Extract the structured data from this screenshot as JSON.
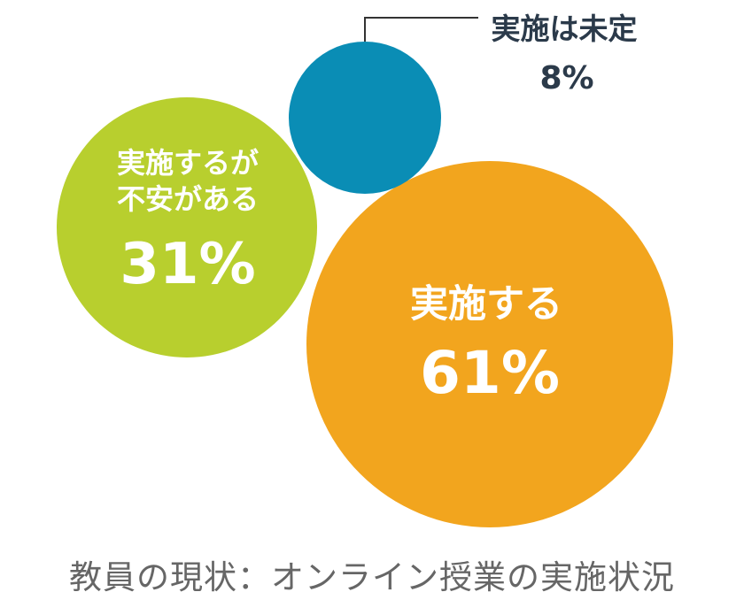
{
  "chart_data": {
    "type": "bubble",
    "title": "教員の現状：オンライン授業の実施状況",
    "series": [
      {
        "label_lines": [
          "実施する"
        ],
        "value_label": "61%",
        "value": 61,
        "color": "#f2a51e"
      },
      {
        "label_lines": [
          "実施するが",
          "不安がある"
        ],
        "value_label": "31%",
        "value": 31,
        "color": "#b8cf2e"
      },
      {
        "label_lines": [
          "実施は未定"
        ],
        "value_label": "8%",
        "value": 8,
        "color": "#0a8db5"
      }
    ],
    "legend": "none",
    "grid": false
  }
}
